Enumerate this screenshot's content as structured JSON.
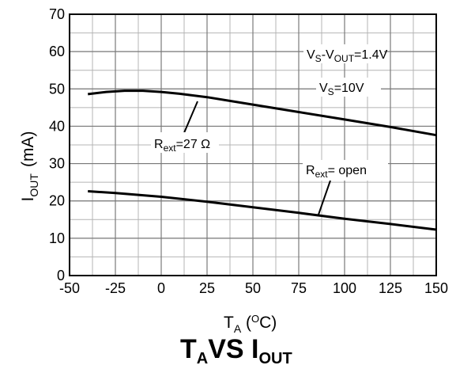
{
  "chart_data": {
    "type": "line",
    "title_parts": [
      "T",
      "A",
      "VS I",
      "OUT"
    ],
    "xlabel_parts": [
      "T",
      "A",
      " (",
      "O",
      "C)"
    ],
    "ylabel_parts": [
      "I",
      "OUT",
      "(mA)"
    ],
    "xlim": [
      -50,
      150
    ],
    "ylim": [
      0,
      70
    ],
    "x_ticks": [
      -50,
      -25,
      0,
      25,
      50,
      75,
      100,
      125,
      150
    ],
    "y_ticks": [
      0,
      10,
      20,
      30,
      40,
      50,
      60,
      70
    ],
    "minor_x_step": 12.5,
    "minor_y_step": 5,
    "grid": true,
    "series": [
      {
        "label_parts": [
          "R",
          "ext",
          "=27 Ω"
        ],
        "points": [
          [
            -40,
            48.6
          ],
          [
            -30,
            49.2
          ],
          [
            -20,
            49.5
          ],
          [
            -10,
            49.5
          ],
          [
            0,
            49.2
          ],
          [
            10,
            48.7
          ],
          [
            25,
            47.8
          ],
          [
            50,
            45.8
          ],
          [
            75,
            43.8
          ],
          [
            100,
            41.8
          ],
          [
            125,
            39.8
          ],
          [
            150,
            37.6
          ]
        ]
      },
      {
        "label_parts": [
          "R",
          "ext",
          "= open"
        ],
        "points": [
          [
            -40,
            22.6
          ],
          [
            -25,
            22.1
          ],
          [
            0,
            21.1
          ],
          [
            25,
            19.8
          ],
          [
            50,
            18.3
          ],
          [
            75,
            16.8
          ],
          [
            100,
            15.2
          ],
          [
            125,
            13.8
          ],
          [
            150,
            12.3
          ]
        ]
      }
    ],
    "annotations": [
      {
        "parts": [
          "V",
          "S",
          "-V",
          "OUT",
          "=1.4V"
        ]
      },
      {
        "parts": [
          "V",
          "S",
          "=10V"
        ]
      }
    ]
  }
}
